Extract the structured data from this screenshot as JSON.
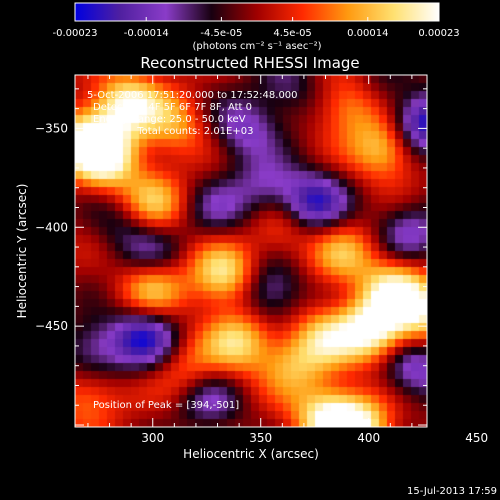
{
  "chart_data": {
    "type": "heatmap",
    "title": "Reconstructed RHESSI Image",
    "xlabel": "Heliocentric X (arcsec)",
    "ylabel": "Heliocentric Y (arcsec)",
    "xlim": [
      264,
      427
    ],
    "ylim": [
      -501,
      -323
    ],
    "x_ticks": [
      300,
      350,
      400,
      450
    ],
    "y_ticks": [
      -350,
      -400,
      -450
    ],
    "colorbar": {
      "range": [
        -0.00023,
        0.00023
      ],
      "tick_values": [
        -0.00023,
        -0.00014,
        -4.5e-05,
        4.5e-05,
        0.00014,
        0.00023
      ],
      "tick_labels": [
        "-0.00023",
        "-0.00014",
        "-4.5e-05",
        "4.5e-05",
        "0.00014",
        "0.00023"
      ],
      "unit": "(photons cm⁻² s⁻¹ asec⁻²)",
      "colors": [
        "#0000e0",
        "#5020a0",
        "#8a3cc8",
        "#180010",
        "#a00000",
        "#ff2a00",
        "#ff9a10",
        "#ffe070",
        "#ffffff"
      ]
    },
    "annotations": [
      "5-Oct-2006 17:51:20.000 to 17:52:48.000",
      "Detectors: 4F 5F 6F 7F 8F, Att 0",
      "Energy Range: 25.0 - 50.0 keV",
      "Clean     Total counts: 2.01E+03"
    ],
    "peak_label": "Position of Peak = [394,-501]",
    "peak": [
      394,
      -501
    ],
    "sources": [
      {
        "x": 288,
        "y": -338,
        "v": 0.00021
      },
      {
        "x": 278,
        "y": -365,
        "v": 0.00023
      },
      {
        "x": 268,
        "y": -355,
        "v": 0.00018
      },
      {
        "x": 300,
        "y": -388,
        "v": 0.00015
      },
      {
        "x": 310,
        "y": -348,
        "v": 0.00012
      },
      {
        "x": 392,
        "y": -338,
        "v": 0.00014
      },
      {
        "x": 408,
        "y": -360,
        "v": 0.00017
      },
      {
        "x": 360,
        "y": -400,
        "v": 0.0001
      },
      {
        "x": 300,
        "y": -430,
        "v": 0.00016
      },
      {
        "x": 333,
        "y": -424,
        "v": 0.0002
      },
      {
        "x": 340,
        "y": -458,
        "v": 0.00017
      },
      {
        "x": 365,
        "y": -470,
        "v": 0.00012
      },
      {
        "x": 316,
        "y": -472,
        "v": 9e-05
      },
      {
        "x": 388,
        "y": -414,
        "v": 0.00013
      },
      {
        "x": 412,
        "y": -432,
        "v": 0.00019
      },
      {
        "x": 402,
        "y": -452,
        "v": 0.00023
      },
      {
        "x": 380,
        "y": -456,
        "v": 0.00015
      },
      {
        "x": 426,
        "y": -444,
        "v": 0.00016
      },
      {
        "x": 394,
        "y": -501,
        "v": 0.00023
      },
      {
        "x": 380,
        "y": -496,
        "v": 0.00018
      },
      {
        "x": 270,
        "y": -486,
        "v": 0.00011
      },
      {
        "x": 286,
        "y": -398,
        "v": -8e-05
      },
      {
        "x": 342,
        "y": -350,
        "v": -0.00013
      },
      {
        "x": 426,
        "y": -348,
        "v": -0.00023
      },
      {
        "x": 352,
        "y": -380,
        "v": -0.00011
      },
      {
        "x": 330,
        "y": -392,
        "v": -9e-05
      },
      {
        "x": 296,
        "y": -456,
        "v": -0.00019
      },
      {
        "x": 272,
        "y": -462,
        "v": -0.00012
      },
      {
        "x": 300,
        "y": -415,
        "v": -0.0001
      },
      {
        "x": 354,
        "y": -432,
        "v": -0.00014
      },
      {
        "x": 374,
        "y": -388,
        "v": -0.0002
      },
      {
        "x": 420,
        "y": -402,
        "v": -0.00012
      },
      {
        "x": 422,
        "y": -472,
        "v": -0.00015
      },
      {
        "x": 326,
        "y": -488,
        "v": -0.00011
      },
      {
        "x": 404,
        "y": -330,
        "v": -7e-05
      },
      {
        "x": 362,
        "y": -330,
        "v": -9e-05
      }
    ]
  },
  "footer": {
    "timestamp": "15-Jul-2013 17:59"
  }
}
